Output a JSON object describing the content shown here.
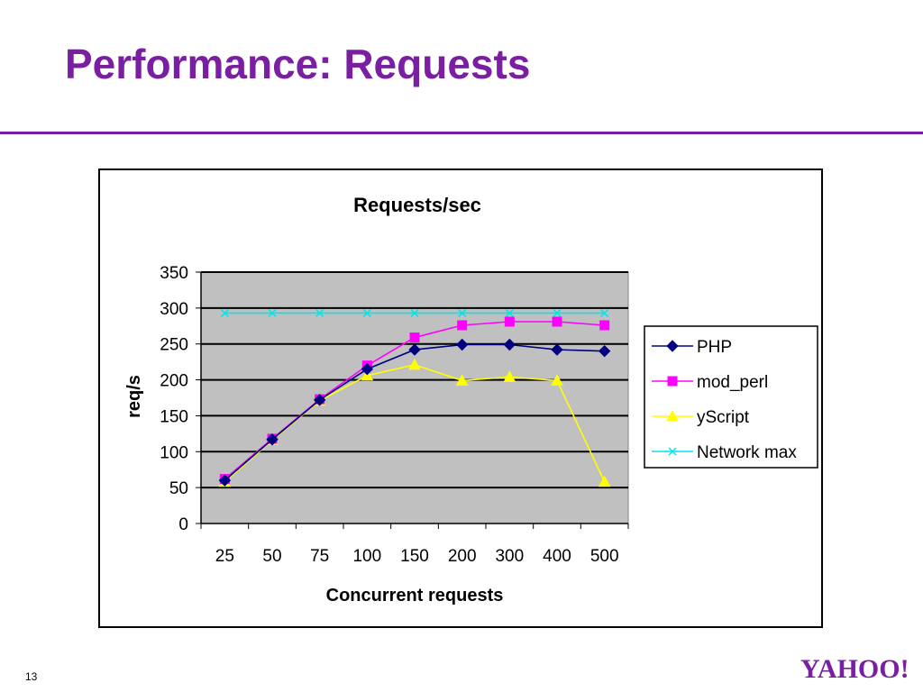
{
  "slide": {
    "title": "Performance: Requests",
    "page_number": "13",
    "logo_text": "YAHOO!"
  },
  "colors": {
    "title": "#7b1fa2",
    "plot_bg": "#c0c0c0",
    "PHP": "#000080",
    "mod_perl": "#ff00ff",
    "yScript": "#ffff00",
    "Network max": "#00e5ee"
  },
  "chart_data": {
    "type": "line",
    "title": "Requests/sec",
    "xlabel": "Concurrent requests",
    "ylabel": "req/s",
    "categories": [
      "25",
      "50",
      "75",
      "100",
      "150",
      "200",
      "300",
      "400",
      "500"
    ],
    "ylim": [
      0,
      350
    ],
    "yticks": [
      0,
      50,
      100,
      150,
      200,
      250,
      300,
      350
    ],
    "grid": true,
    "legend": "right",
    "series": [
      {
        "name": "PHP",
        "marker": "diamond",
        "values": [
          60,
          117,
          172,
          215,
          242,
          249,
          249,
          242,
          240
        ]
      },
      {
        "name": "mod_perl",
        "marker": "square",
        "values": [
          62,
          118,
          173,
          220,
          259,
          276,
          281,
          281,
          276
        ]
      },
      {
        "name": "yScript",
        "marker": "triangle",
        "values": [
          58,
          116,
          171,
          206,
          221,
          199,
          204,
          199,
          58
        ]
      },
      {
        "name": "Network max",
        "marker": "x",
        "values": [
          293,
          293,
          293,
          293,
          293,
          293,
          293,
          293,
          293
        ]
      }
    ]
  }
}
